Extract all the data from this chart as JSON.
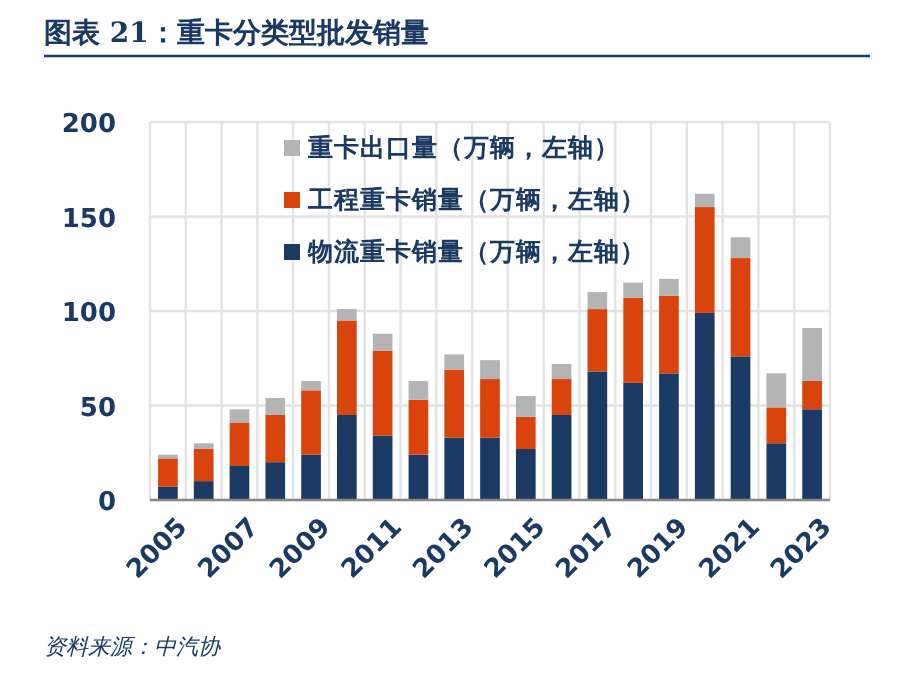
{
  "chart_data": {
    "type": "bar",
    "stacked": true,
    "title": "图表 21：重卡分类型批发销量",
    "categories": [
      "2005",
      null,
      "2007",
      null,
      "2009",
      null,
      "2011",
      null,
      "2013",
      null,
      "2015",
      null,
      "2017",
      null,
      "2019",
      null,
      "2021",
      null,
      "2023"
    ],
    "series": [
      {
        "name": "物流重卡销量（万辆，左轴）",
        "color": "#1b3a63",
        "values": [
          7,
          10,
          18,
          20,
          24,
          45,
          34,
          24,
          33,
          33,
          27,
          45,
          68,
          62,
          67,
          99,
          76,
          30,
          48
        ]
      },
      {
        "name": "工程重卡销量（万辆，左轴）",
        "color": "#d9430c",
        "values": [
          15,
          17,
          23,
          25,
          34,
          50,
          45,
          29,
          36,
          31,
          17,
          19,
          33,
          45,
          41,
          56,
          52,
          19,
          15
        ]
      },
      {
        "name": "重卡出口量（万辆，左轴）",
        "color": "#b4b4b4",
        "values": [
          2,
          3,
          7,
          9,
          5,
          6,
          9,
          10,
          8,
          10,
          11,
          8,
          9,
          8,
          9,
          7,
          11,
          18,
          28
        ]
      }
    ],
    "ylim": [
      0,
      200
    ],
    "yticks": [
      0,
      50,
      100,
      150,
      200
    ],
    "grid": true,
    "legend": "top left",
    "annotations": [
      "资料来源：中汽协"
    ]
  }
}
